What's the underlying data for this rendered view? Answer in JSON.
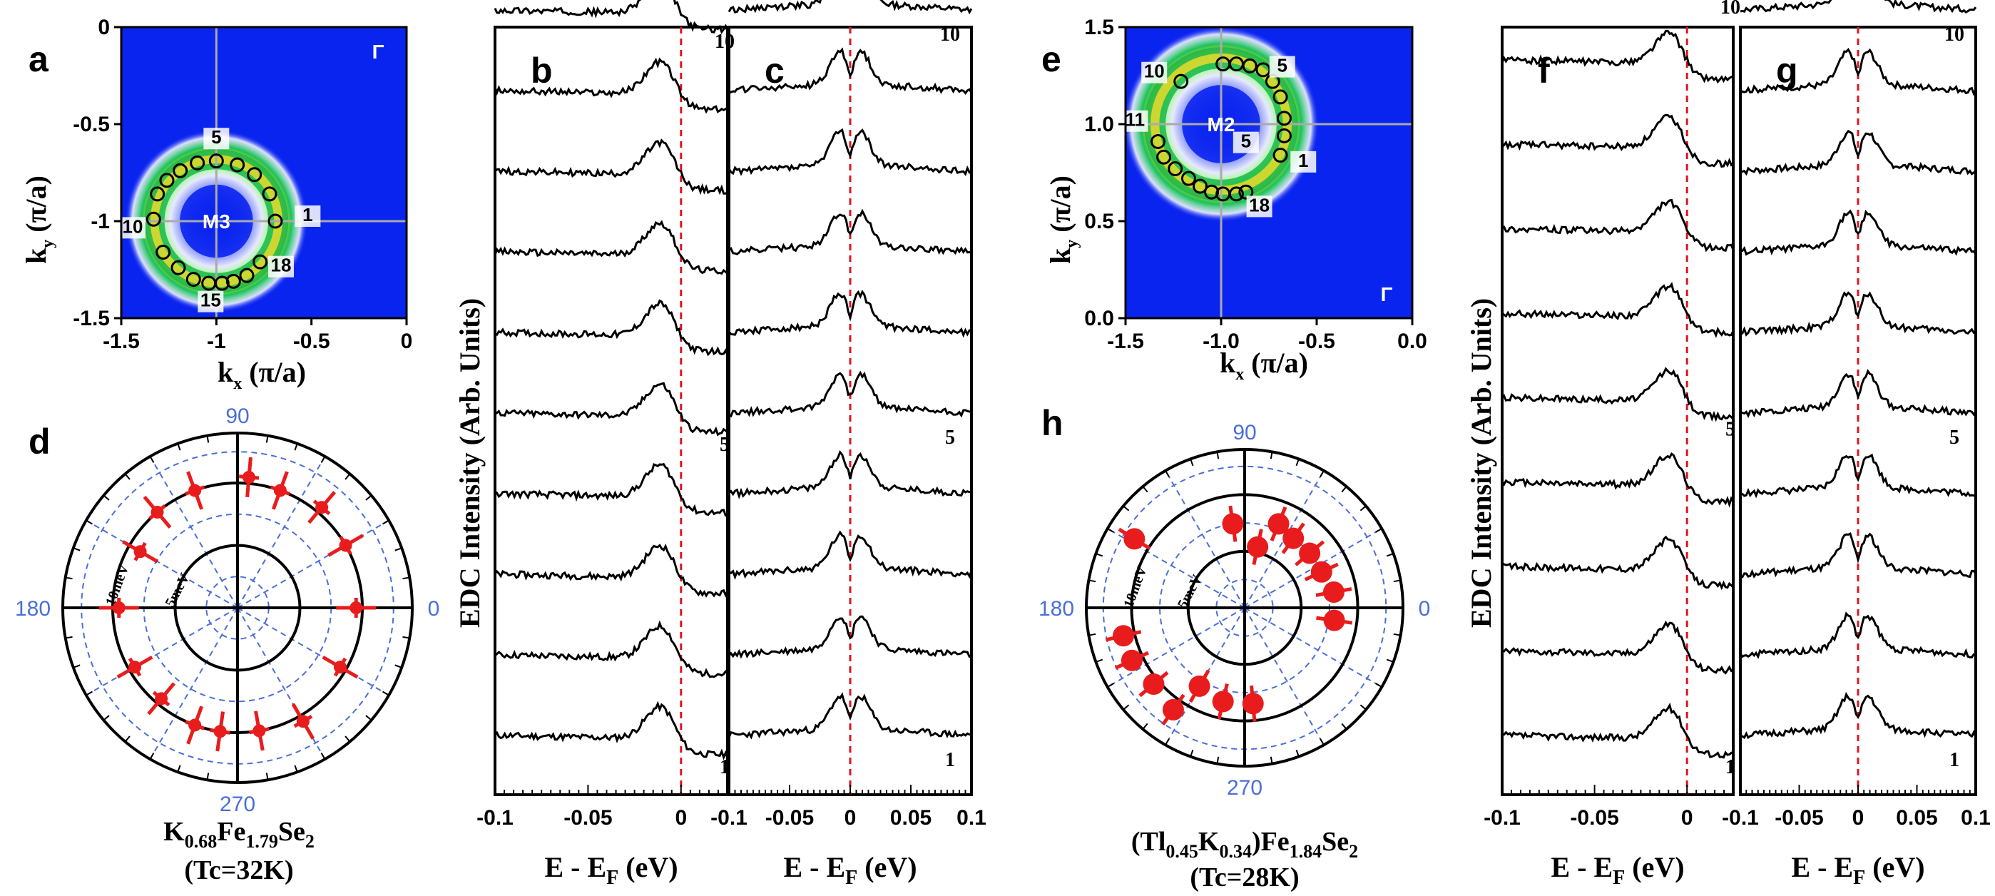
{
  "colors": {
    "blue_bg": "#0a24f0",
    "fermi_line": "#e0141e",
    "gap_points": "#e81c1c",
    "polar_grid": "#4a6fd8",
    "curve": "#000000"
  },
  "chart_data": [
    {
      "id": "a",
      "type": "heatmap",
      "label": "a",
      "xlabel_main": "k",
      "xlabel_sub": "x",
      "xlabel_unit": " (π/a)",
      "ylabel_main": "k",
      "ylabel_sub": "y",
      "ylabel_unit": " (π/a)",
      "xlim": [
        -1.5,
        0
      ],
      "ylim": [
        -1.5,
        0
      ],
      "xticks": [
        -1.5,
        -1,
        -0.5,
        0
      ],
      "xtick_labels": [
        "-1.5",
        "-1",
        "-0.5",
        "0"
      ],
      "yticks": [
        -1.5,
        -1,
        -0.5,
        0
      ],
      "ytick_labels": [
        "-1.5",
        "-1",
        "-0.5",
        "0"
      ],
      "center": [
        -1,
        -1
      ],
      "ring_radius": 0.31,
      "center_label": "M3",
      "corner_label": "Γ",
      "cut_labels": [
        {
          "text": "5",
          "k": [
            -1.0,
            -0.6
          ]
        },
        {
          "text": "1",
          "k": [
            -0.52,
            -1.0
          ]
        },
        {
          "text": "10",
          "k": [
            -1.44,
            -1.06
          ]
        },
        {
          "text": "18",
          "k": [
            -0.66,
            -1.26
          ]
        },
        {
          "text": "15",
          "k": [
            -1.03,
            -1.44
          ]
        }
      ],
      "points": [
        [
          -0.69,
          -1.0
        ],
        [
          -0.72,
          -0.86
        ],
        [
          -0.8,
          -0.76
        ],
        [
          -0.89,
          -0.71
        ],
        [
          -1.0,
          -0.69
        ],
        [
          -1.1,
          -0.7
        ],
        [
          -1.19,
          -0.74
        ],
        [
          -1.26,
          -0.79
        ],
        [
          -1.31,
          -0.86
        ],
        [
          -1.33,
          -0.99
        ],
        [
          -1.28,
          -1.16
        ],
        [
          -1.2,
          -1.24
        ],
        [
          -1.12,
          -1.3
        ],
        [
          -1.04,
          -1.32
        ],
        [
          -0.97,
          -1.32
        ],
        [
          -0.91,
          -1.31
        ],
        [
          -0.84,
          -1.28
        ],
        [
          -0.77,
          -1.21
        ]
      ]
    },
    {
      "id": "b",
      "type": "line",
      "label": "b",
      "xlabel": "E - E",
      "xlabel_sub": "F",
      "xlabel_unit": " (eV)",
      "ylabel": "EDC Intensity (Arb. Units)",
      "xlim": [
        -0.1,
        0.025
      ],
      "xticks": [
        -0.1,
        -0.05,
        0
      ],
      "xtick_labels": [
        "-0.1",
        "-0.05",
        "0"
      ],
      "fermi": 0,
      "n_curves": 10,
      "curve_labels": [
        "10",
        "5",
        "1"
      ],
      "peak_energy": -0.01,
      "symmetrized": false,
      "curve_spacing": 0.105
    },
    {
      "id": "c",
      "type": "line",
      "label": "c",
      "xlabel": "E - E",
      "xlabel_sub": "F",
      "xlabel_unit": " (eV)",
      "xlim": [
        -0.1,
        0.1
      ],
      "xticks": [
        -0.1,
        -0.05,
        0,
        0.05,
        0.1
      ],
      "xtick_labels": [
        "-0.1",
        "-0.05",
        "0",
        "0.05",
        "0.1"
      ],
      "fermi": 0,
      "n_curves": 10,
      "curve_labels": [
        "10",
        "5",
        "1"
      ],
      "peak_energy": -0.008,
      "symmetrized": true,
      "curve_spacing": 0.105
    },
    {
      "id": "d",
      "type": "scatter",
      "label": "d",
      "projection": "polar",
      "angle_labels": [
        "90",
        "180",
        "0",
        "270"
      ],
      "ring_labels": [
        "10meV",
        "5meV"
      ],
      "rmax": 14,
      "rings": [
        5,
        10
      ],
      "compound": {
        "pre": "K",
        "s1": "0.68",
        "mid": "Fe",
        "s2": "1.79",
        "post": "Se",
        "s3": "2"
      },
      "tc": "(Tc=32K)",
      "gaps": [
        {
          "theta": 0,
          "gap": 9.5
        },
        {
          "theta": 30,
          "gap": 10.0
        },
        {
          "theta": 50,
          "gap": 10.5
        },
        {
          "theta": 70,
          "gap": 10.0
        },
        {
          "theta": 85,
          "gap": 10.5
        },
        {
          "theta": 110,
          "gap": 10.0
        },
        {
          "theta": 130,
          "gap": 10.0
        },
        {
          "theta": 150,
          "gap": 9.0
        },
        {
          "theta": 180,
          "gap": 9.5
        },
        {
          "theta": 210,
          "gap": 9.5
        },
        {
          "theta": 230,
          "gap": 9.5
        },
        {
          "theta": 250,
          "gap": 10.0
        },
        {
          "theta": 262,
          "gap": 10.0
        },
        {
          "theta": 280,
          "gap": 10.0
        },
        {
          "theta": 300,
          "gap": 10.5
        },
        {
          "theta": 330,
          "gap": 9.5
        }
      ]
    },
    {
      "id": "e",
      "type": "heatmap",
      "label": "e",
      "xlabel_main": "k",
      "xlabel_sub": "x",
      "xlabel_unit": " (π/a)",
      "ylabel_main": "k",
      "ylabel_sub": "y",
      "ylabel_unit": " (π/a)",
      "xlim": [
        -1.5,
        0
      ],
      "ylim": [
        0,
        1.5
      ],
      "xticks": [
        -1.5,
        -1,
        -0.5,
        0
      ],
      "xtick_labels": [
        "-1.5",
        "-1.0",
        "-0.5",
        "0.0"
      ],
      "yticks": [
        0,
        0.5,
        1,
        1.5
      ],
      "ytick_labels": [
        "0.0",
        "0.5",
        "1.0",
        "1.5"
      ],
      "center": [
        -1,
        1
      ],
      "ring_radius": 0.33,
      "center_label": "M2",
      "corner_label": "Γ",
      "cut_labels": [
        {
          "text": "10",
          "k": [
            -1.35,
            1.24
          ]
        },
        {
          "text": "5",
          "k": [
            -0.68,
            1.27
          ]
        },
        {
          "text": "11",
          "k": [
            -1.45,
            0.99
          ]
        },
        {
          "text": "5",
          "k": [
            -0.87,
            0.88
          ]
        },
        {
          "text": "1",
          "k": [
            -0.57,
            0.78
          ]
        },
        {
          "text": "18",
          "k": [
            -0.8,
            0.55
          ]
        }
      ],
      "points": [
        [
          -1.21,
          1.22
        ],
        [
          -0.99,
          1.31
        ],
        [
          -0.92,
          1.31
        ],
        [
          -0.85,
          1.3
        ],
        [
          -0.78,
          1.28
        ],
        [
          -0.73,
          1.22
        ],
        [
          -0.69,
          1.14
        ],
        [
          -0.67,
          1.03
        ],
        [
          -0.67,
          0.94
        ],
        [
          -0.69,
          0.84
        ],
        [
          -1.33,
          0.91
        ],
        [
          -1.3,
          0.83
        ],
        [
          -1.24,
          0.77
        ],
        [
          -1.17,
          0.72
        ],
        [
          -1.11,
          0.68
        ],
        [
          -1.05,
          0.65
        ],
        [
          -0.99,
          0.64
        ],
        [
          -0.92,
          0.64
        ],
        [
          -0.87,
          0.65
        ]
      ]
    },
    {
      "id": "f",
      "type": "line",
      "label": "f",
      "xlabel": "E - E",
      "xlabel_sub": "F",
      "xlabel_unit": " (eV)",
      "ylabel": "EDC Intensity (Arb. Units)",
      "xlim": [
        -0.1,
        0.025
      ],
      "xticks": [
        -0.1,
        -0.05,
        0
      ],
      "xtick_labels": [
        "-0.1",
        "-0.05",
        "0"
      ],
      "fermi": 0,
      "n_curves": 10,
      "curve_labels": [
        "10",
        "5",
        "1"
      ],
      "peak_energy": -0.008,
      "symmetrized": false,
      "curve_spacing": 0.11
    },
    {
      "id": "g",
      "type": "line",
      "label": "g",
      "xlabel": "E - E",
      "xlabel_sub": "F",
      "xlabel_unit": " (eV)",
      "xlim": [
        -0.1,
        0.1
      ],
      "xticks": [
        -0.1,
        -0.05,
        0,
        0.05,
        0.1
      ],
      "xtick_labels": [
        "-0.1",
        "-0.05",
        "0",
        "0.05",
        "0.1"
      ],
      "fermi": 0,
      "n_curves": 10,
      "curve_labels": [
        "10",
        "5",
        "1"
      ],
      "peak_energy": -0.008,
      "symmetrized": true,
      "curve_spacing": 0.105
    },
    {
      "id": "h",
      "type": "scatter",
      "label": "h",
      "projection": "polar",
      "angle_labels": [
        "90",
        "180",
        "0",
        "270"
      ],
      "ring_labels": [
        "10meV",
        "5meV"
      ],
      "rmax": 14,
      "rings": [
        5,
        10
      ],
      "compound": {
        "pre": "(Tl",
        "s1": "0.45",
        "mid": "K",
        "s2": "0.34",
        "post": ")Fe",
        "s3": "1.84",
        "post2": "Se",
        "s4": "2"
      },
      "tc": "(Tc=28K)",
      "gaps": [
        {
          "theta": -8,
          "gap": 8.0
        },
        {
          "theta": 10,
          "gap": 8.0
        },
        {
          "theta": 25,
          "gap": 7.5
        },
        {
          "theta": 40,
          "gap": 7.5
        },
        {
          "theta": 55,
          "gap": 7.5
        },
        {
          "theta": 68,
          "gap": 8.0
        },
        {
          "theta": 78,
          "gap": 5.5
        },
        {
          "theta": 98,
          "gap": 7.5
        },
        {
          "theta": 148,
          "gap": 11.5
        },
        {
          "theta": 193,
          "gap": 11.0
        },
        {
          "theta": 205,
          "gap": 11.0
        },
        {
          "theta": 220,
          "gap": 10.5
        },
        {
          "theta": 235,
          "gap": 11.0
        },
        {
          "theta": 240,
          "gap": 8.0
        },
        {
          "theta": 257,
          "gap": 8.5
        },
        {
          "theta": 275,
          "gap": 8.5
        }
      ]
    }
  ]
}
